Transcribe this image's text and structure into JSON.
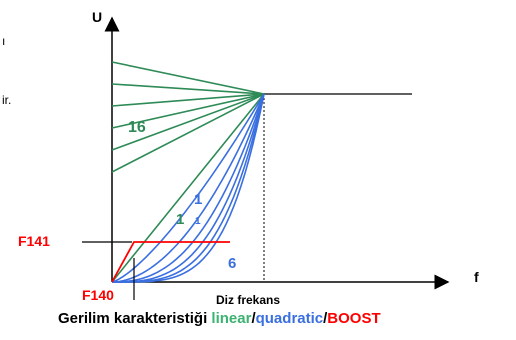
{
  "colors": {
    "axis": "#000000",
    "linear": "#2e8b57",
    "quadratic": "#3a6fe0",
    "boost": "#ff0000",
    "base_line": "#000000"
  },
  "diagram": {
    "y_axis_label": "U",
    "x_axis_label": "f",
    "nominal_freq_label": "Diz frekans",
    "linear_count_label": "16",
    "linear_start_label": "1",
    "quad_start_label": "1",
    "quad_start_label_small": "1",
    "quad_count_label": "6",
    "boost_level_label": "F141",
    "boost_end_label": "F140",
    "linear_curve_count": 6,
    "quadratic_curve_count": 6
  },
  "caption": {
    "prefix": "Gerilim karakteristiği ",
    "linear": "linear",
    "sep1": "/",
    "quadratic": "quadratic",
    "sep2": "/",
    "boost": "BOOST"
  },
  "clipped_text": {
    "frag1": "ı",
    "frag2": "ir."
  }
}
